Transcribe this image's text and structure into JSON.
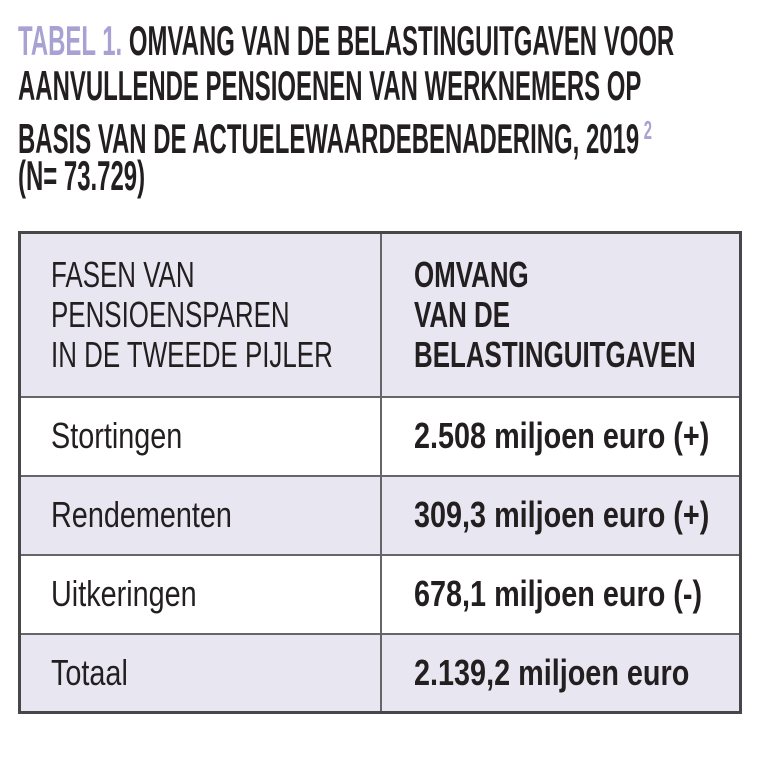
{
  "colors": {
    "accent": "#a8a2d3",
    "ink": "#231f20",
    "lavender": "#e8e6f1",
    "border_inner": "#66666a",
    "border_outer": "#47474a"
  },
  "title": {
    "label": "TABEL 1.",
    "line1": "OMVANG VAN DE BELASTINGUITGAVEN VOOR",
    "line2": "AANVULLENDE PENSIOENEN VAN WERKNEMERS OP",
    "line3": "BASIS VAN DE ACTUELEWAARDEBENADERING, 2019",
    "footnote_marker": "2",
    "line4": "(N= 73.729)"
  },
  "table": {
    "header": {
      "col1": "FASEN VAN\nPENSIOENSPAREN\nIN DE TWEEDE PIJLER",
      "col2": "OMVANG\nVAN DE\nBELASTINGUITGAVEN"
    },
    "rows": [
      {
        "phase": "Stortingen",
        "amount": "2.508 miljoen euro (+)"
      },
      {
        "phase": "Rendementen",
        "amount": "309,3 miljoen euro (+)"
      },
      {
        "phase": "Uitkeringen",
        "amount": "678,1 miljoen euro (-)"
      },
      {
        "phase": "Totaal",
        "amount": "2.139,2 miljoen euro"
      }
    ]
  },
  "chart_data": {
    "type": "table",
    "title": "TABEL 1. OMVANG VAN DE BELASTINGUITGAVEN VOOR AANVULLENDE PENSIOENEN VAN WERKNEMERS OP BASIS VAN DE ACTUELEWAARDEBENADERING, 2019 (N= 73.729)",
    "columns": [
      "FASEN VAN PENSIOENSPAREN IN DE TWEEDE PIJLER",
      "OMVANG VAN DE BELASTINGUITGAVEN"
    ],
    "rows": [
      [
        "Stortingen",
        "2.508 miljoen euro (+)"
      ],
      [
        "Rendementen",
        "309,3 miljoen euro (+)"
      ],
      [
        "Uitkeringen",
        "678,1 miljoen euro (-)"
      ],
      [
        "Totaal",
        "2.139,2 miljoen euro"
      ]
    ],
    "values_miljoen_euro": {
      "Stortingen": 2508,
      "Rendementen": 309.3,
      "Uitkeringen": -678.1,
      "Totaal": 2139.2
    }
  }
}
